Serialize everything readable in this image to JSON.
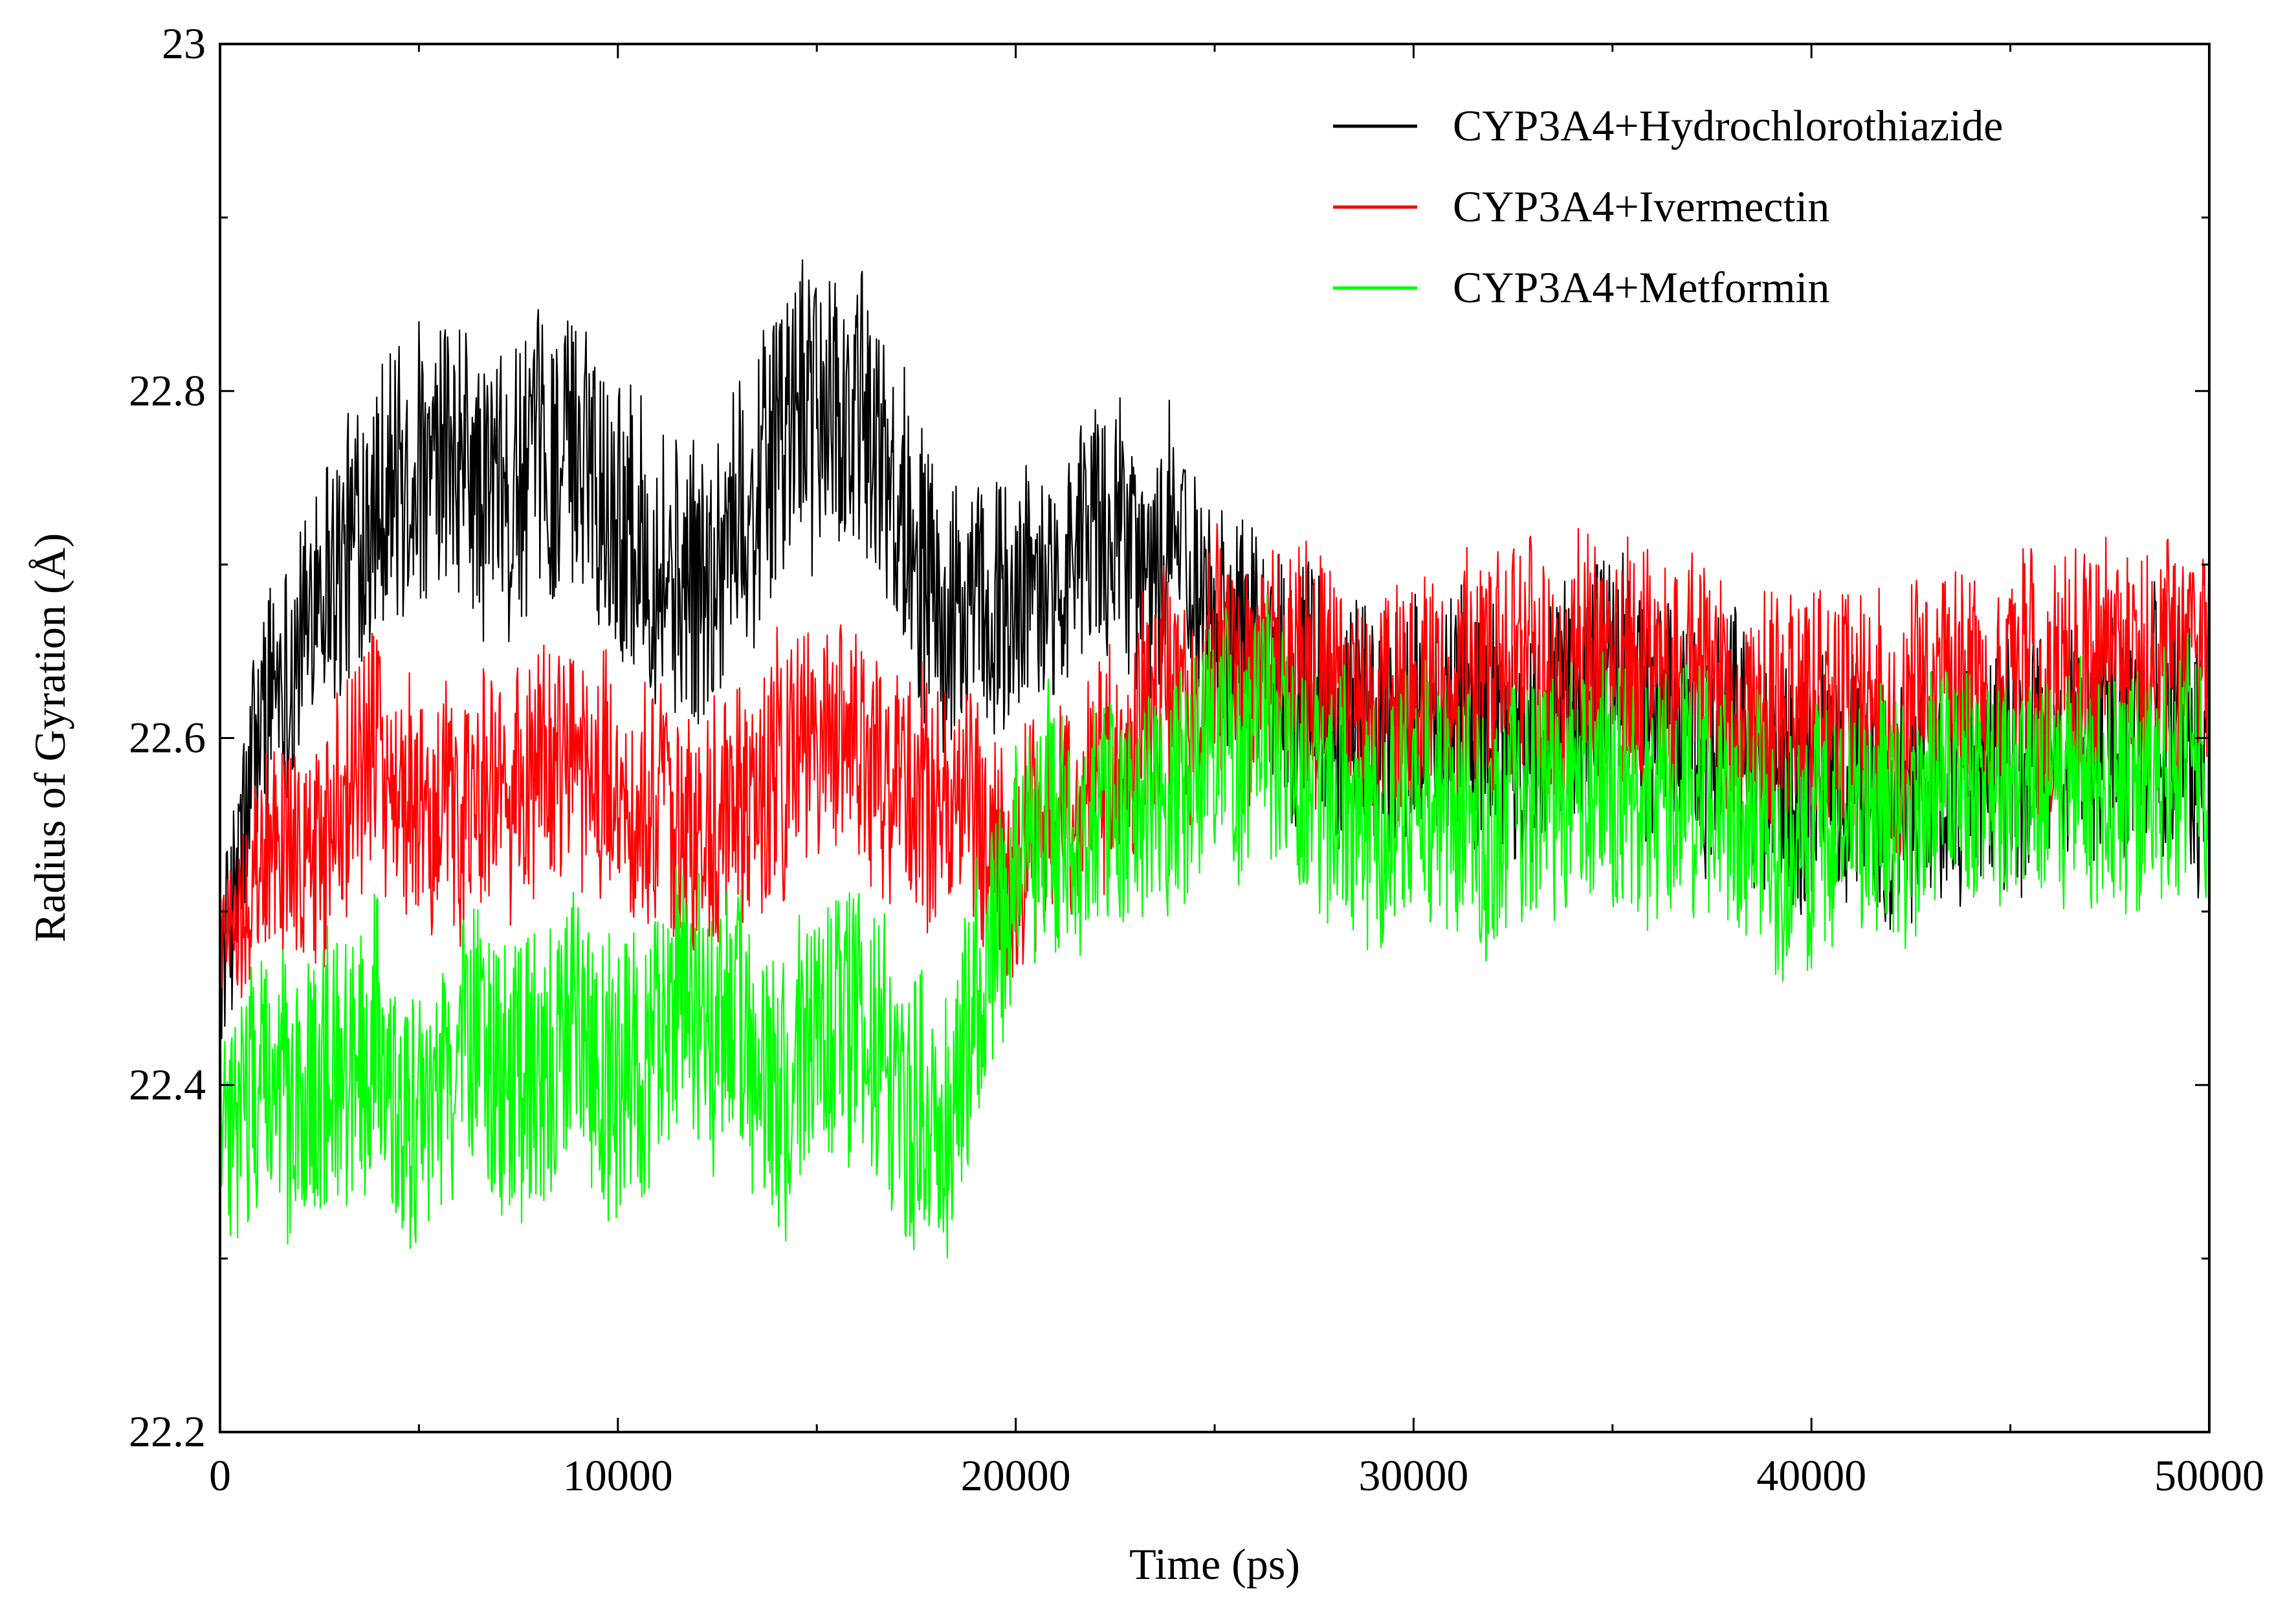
{
  "chart_data": {
    "type": "line",
    "title": "",
    "xlabel": "Time (ps)",
    "ylabel": "Radius of Gyration (Å)",
    "xlim": [
      0,
      50000
    ],
    "ylim": [
      22.2,
      23.0
    ],
    "x_ticks": [
      0,
      10000,
      20000,
      30000,
      40000,
      50000
    ],
    "x_tick_labels": [
      "0",
      "10000",
      "20000",
      "30000",
      "40000",
      "50000"
    ],
    "y_ticks": [
      22.2,
      22.4,
      22.6,
      22.8,
      23.0
    ],
    "y_tick_labels": [
      "22.2",
      "22.4",
      "22.6",
      "22.8",
      "23"
    ],
    "grid": false,
    "legend_position": "top-right",
    "series": [
      {
        "name": "CYP3A4+Hydrochlorothiazide",
        "color": "#000000",
        "x": [
          0,
          1000,
          2000,
          3000,
          4000,
          5000,
          6000,
          7000,
          8000,
          9000,
          10000,
          11000,
          12000,
          13000,
          14000,
          15000,
          16000,
          17000,
          18000,
          19000,
          20000,
          21000,
          22000,
          23000,
          24000,
          25000,
          26000,
          27000,
          28000,
          29000,
          30000,
          31000,
          32000,
          33000,
          34000,
          35000,
          36000,
          37000,
          38000,
          39000,
          40000,
          41000,
          42000,
          43000,
          44000,
          45000,
          46000,
          47000,
          48000,
          49000,
          50000
        ],
        "y": [
          22.46,
          22.6,
          22.66,
          22.7,
          22.73,
          22.74,
          22.75,
          22.74,
          22.76,
          22.77,
          22.74,
          22.7,
          22.68,
          22.72,
          22.78,
          22.79,
          22.78,
          22.74,
          22.7,
          22.66,
          22.67,
          22.7,
          22.72,
          22.71,
          22.7,
          22.68,
          22.66,
          22.64,
          22.61,
          22.6,
          22.61,
          22.62,
          22.6,
          22.6,
          22.62,
          22.64,
          22.62,
          22.6,
          22.6,
          22.58,
          22.56,
          22.57,
          22.56,
          22.57,
          22.58,
          22.58,
          22.59,
          22.6,
          22.61,
          22.61,
          22.6
        ],
        "amplitude": [
          0.05,
          0.07,
          0.07,
          0.08,
          0.08,
          0.08,
          0.08,
          0.08,
          0.08,
          0.08,
          0.08,
          0.08,
          0.08,
          0.08,
          0.08,
          0.08,
          0.08,
          0.08,
          0.08,
          0.08,
          0.07,
          0.07,
          0.07,
          0.07,
          0.07,
          0.07,
          0.07,
          0.07,
          0.07,
          0.07,
          0.07,
          0.07,
          0.07,
          0.07,
          0.07,
          0.07,
          0.07,
          0.07,
          0.07,
          0.07,
          0.07,
          0.07,
          0.07,
          0.07,
          0.07,
          0.07,
          0.07,
          0.07,
          0.07,
          0.07,
          0.07
        ]
      },
      {
        "name": "CYP3A4+Ivermectin",
        "color": "#ff0000",
        "x": [
          0,
          1000,
          2000,
          3000,
          4000,
          5000,
          6000,
          7000,
          8000,
          9000,
          10000,
          11000,
          12000,
          13000,
          14000,
          15000,
          16000,
          17000,
          18000,
          19000,
          20000,
          21000,
          22000,
          23000,
          24000,
          25000,
          26000,
          27000,
          28000,
          29000,
          30000,
          31000,
          32000,
          33000,
          34000,
          35000,
          36000,
          37000,
          38000,
          39000,
          40000,
          41000,
          42000,
          43000,
          44000,
          45000,
          46000,
          47000,
          48000,
          49000,
          50000
        ],
        "y": [
          22.48,
          22.54,
          22.53,
          22.56,
          22.58,
          22.54,
          22.56,
          22.56,
          22.58,
          22.59,
          22.57,
          22.55,
          22.54,
          22.56,
          22.58,
          22.6,
          22.59,
          22.58,
          22.57,
          22.56,
          22.54,
          22.55,
          22.58,
          22.6,
          22.62,
          22.64,
          22.64,
          22.64,
          22.62,
          22.61,
          22.62,
          22.63,
          22.62,
          22.63,
          22.64,
          22.64,
          22.63,
          22.64,
          22.63,
          22.62,
          22.61,
          22.62,
          22.61,
          22.62,
          22.62,
          22.63,
          22.63,
          22.64,
          22.64,
          22.64,
          22.63
        ],
        "amplitude": [
          0.05,
          0.06,
          0.06,
          0.07,
          0.07,
          0.07,
          0.07,
          0.07,
          0.07,
          0.07,
          0.07,
          0.07,
          0.07,
          0.07,
          0.07,
          0.07,
          0.07,
          0.07,
          0.07,
          0.07,
          0.07,
          0.07,
          0.07,
          0.07,
          0.07,
          0.07,
          0.07,
          0.07,
          0.07,
          0.07,
          0.07,
          0.07,
          0.07,
          0.07,
          0.07,
          0.07,
          0.07,
          0.07,
          0.07,
          0.07,
          0.07,
          0.07,
          0.07,
          0.07,
          0.07,
          0.07,
          0.07,
          0.07,
          0.07,
          0.07,
          0.07
        ]
      },
      {
        "name": "CYP3A4+Metformin",
        "color": "#00ff00",
        "x": [
          0,
          1000,
          2000,
          3000,
          4000,
          5000,
          6000,
          7000,
          8000,
          9000,
          10000,
          11000,
          12000,
          13000,
          14000,
          15000,
          16000,
          17000,
          18000,
          19000,
          20000,
          21000,
          22000,
          23000,
          24000,
          25000,
          26000,
          27000,
          28000,
          29000,
          30000,
          31000,
          32000,
          33000,
          34000,
          35000,
          36000,
          37000,
          38000,
          39000,
          40000,
          41000,
          42000,
          43000,
          44000,
          45000,
          46000,
          47000,
          48000,
          49000,
          50000
        ],
        "y": [
          22.36,
          22.4,
          22.38,
          22.42,
          22.42,
          22.38,
          22.42,
          22.4,
          22.41,
          22.42,
          22.4,
          22.42,
          22.44,
          22.44,
          22.4,
          22.42,
          22.44,
          22.4,
          22.38,
          22.44,
          22.52,
          22.54,
          22.55,
          22.56,
          22.57,
          22.59,
          22.6,
          22.58,
          22.56,
          22.56,
          22.57,
          22.56,
          22.55,
          22.57,
          22.57,
          22.57,
          22.56,
          22.57,
          22.56,
          22.55,
          22.54,
          22.55,
          22.56,
          22.56,
          22.57,
          22.57,
          22.57,
          22.58,
          22.58,
          22.58,
          22.57
        ],
        "amplitude": [
          0.07,
          0.08,
          0.08,
          0.08,
          0.08,
          0.08,
          0.08,
          0.08,
          0.08,
          0.08,
          0.08,
          0.08,
          0.08,
          0.08,
          0.08,
          0.08,
          0.08,
          0.08,
          0.08,
          0.08,
          0.07,
          0.07,
          0.07,
          0.07,
          0.07,
          0.07,
          0.07,
          0.07,
          0.07,
          0.07,
          0.07,
          0.07,
          0.07,
          0.07,
          0.07,
          0.07,
          0.07,
          0.07,
          0.07,
          0.07,
          0.07,
          0.07,
          0.07,
          0.07,
          0.07,
          0.07,
          0.07,
          0.07,
          0.07,
          0.07,
          0.07
        ]
      }
    ]
  }
}
